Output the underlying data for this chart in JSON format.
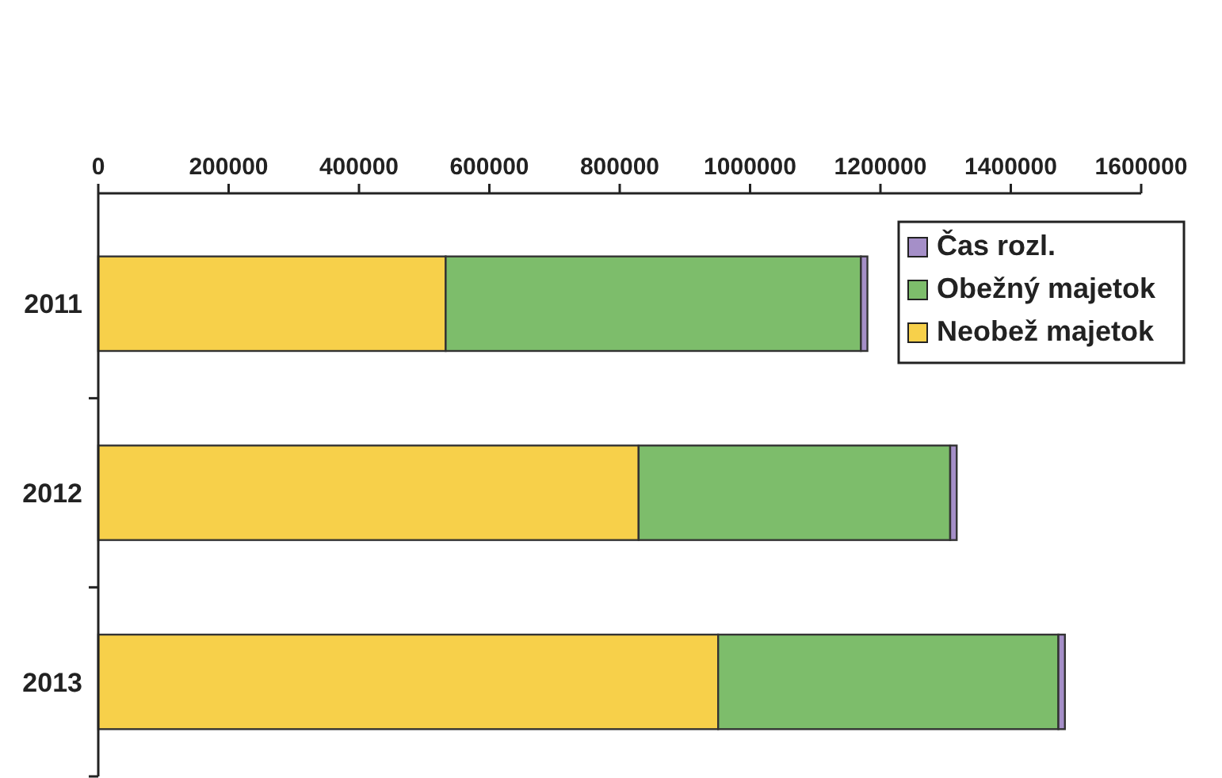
{
  "chart_data": {
    "type": "bar",
    "orientation": "horizontal",
    "stacked": true,
    "categories": [
      "2011",
      "2012",
      "2013"
    ],
    "series": [
      {
        "name": "Neobež majetok",
        "color": "#f7d04a",
        "values": [
          533000,
          829000,
          951000
        ]
      },
      {
        "name": "Obežný majetok",
        "color": "#7dbd6b",
        "values": [
          637000,
          478000,
          522000
        ]
      },
      {
        "name": "Čas rozl.",
        "color": "#a58fc8",
        "values": [
          10000,
          10000,
          10000
        ]
      }
    ],
    "xlim": [
      0,
      1600000
    ],
    "xticks": [
      0,
      200000,
      400000,
      600000,
      800000,
      1000000,
      1200000,
      1400000,
      1600000
    ],
    "grid": false,
    "legend": "top right"
  }
}
